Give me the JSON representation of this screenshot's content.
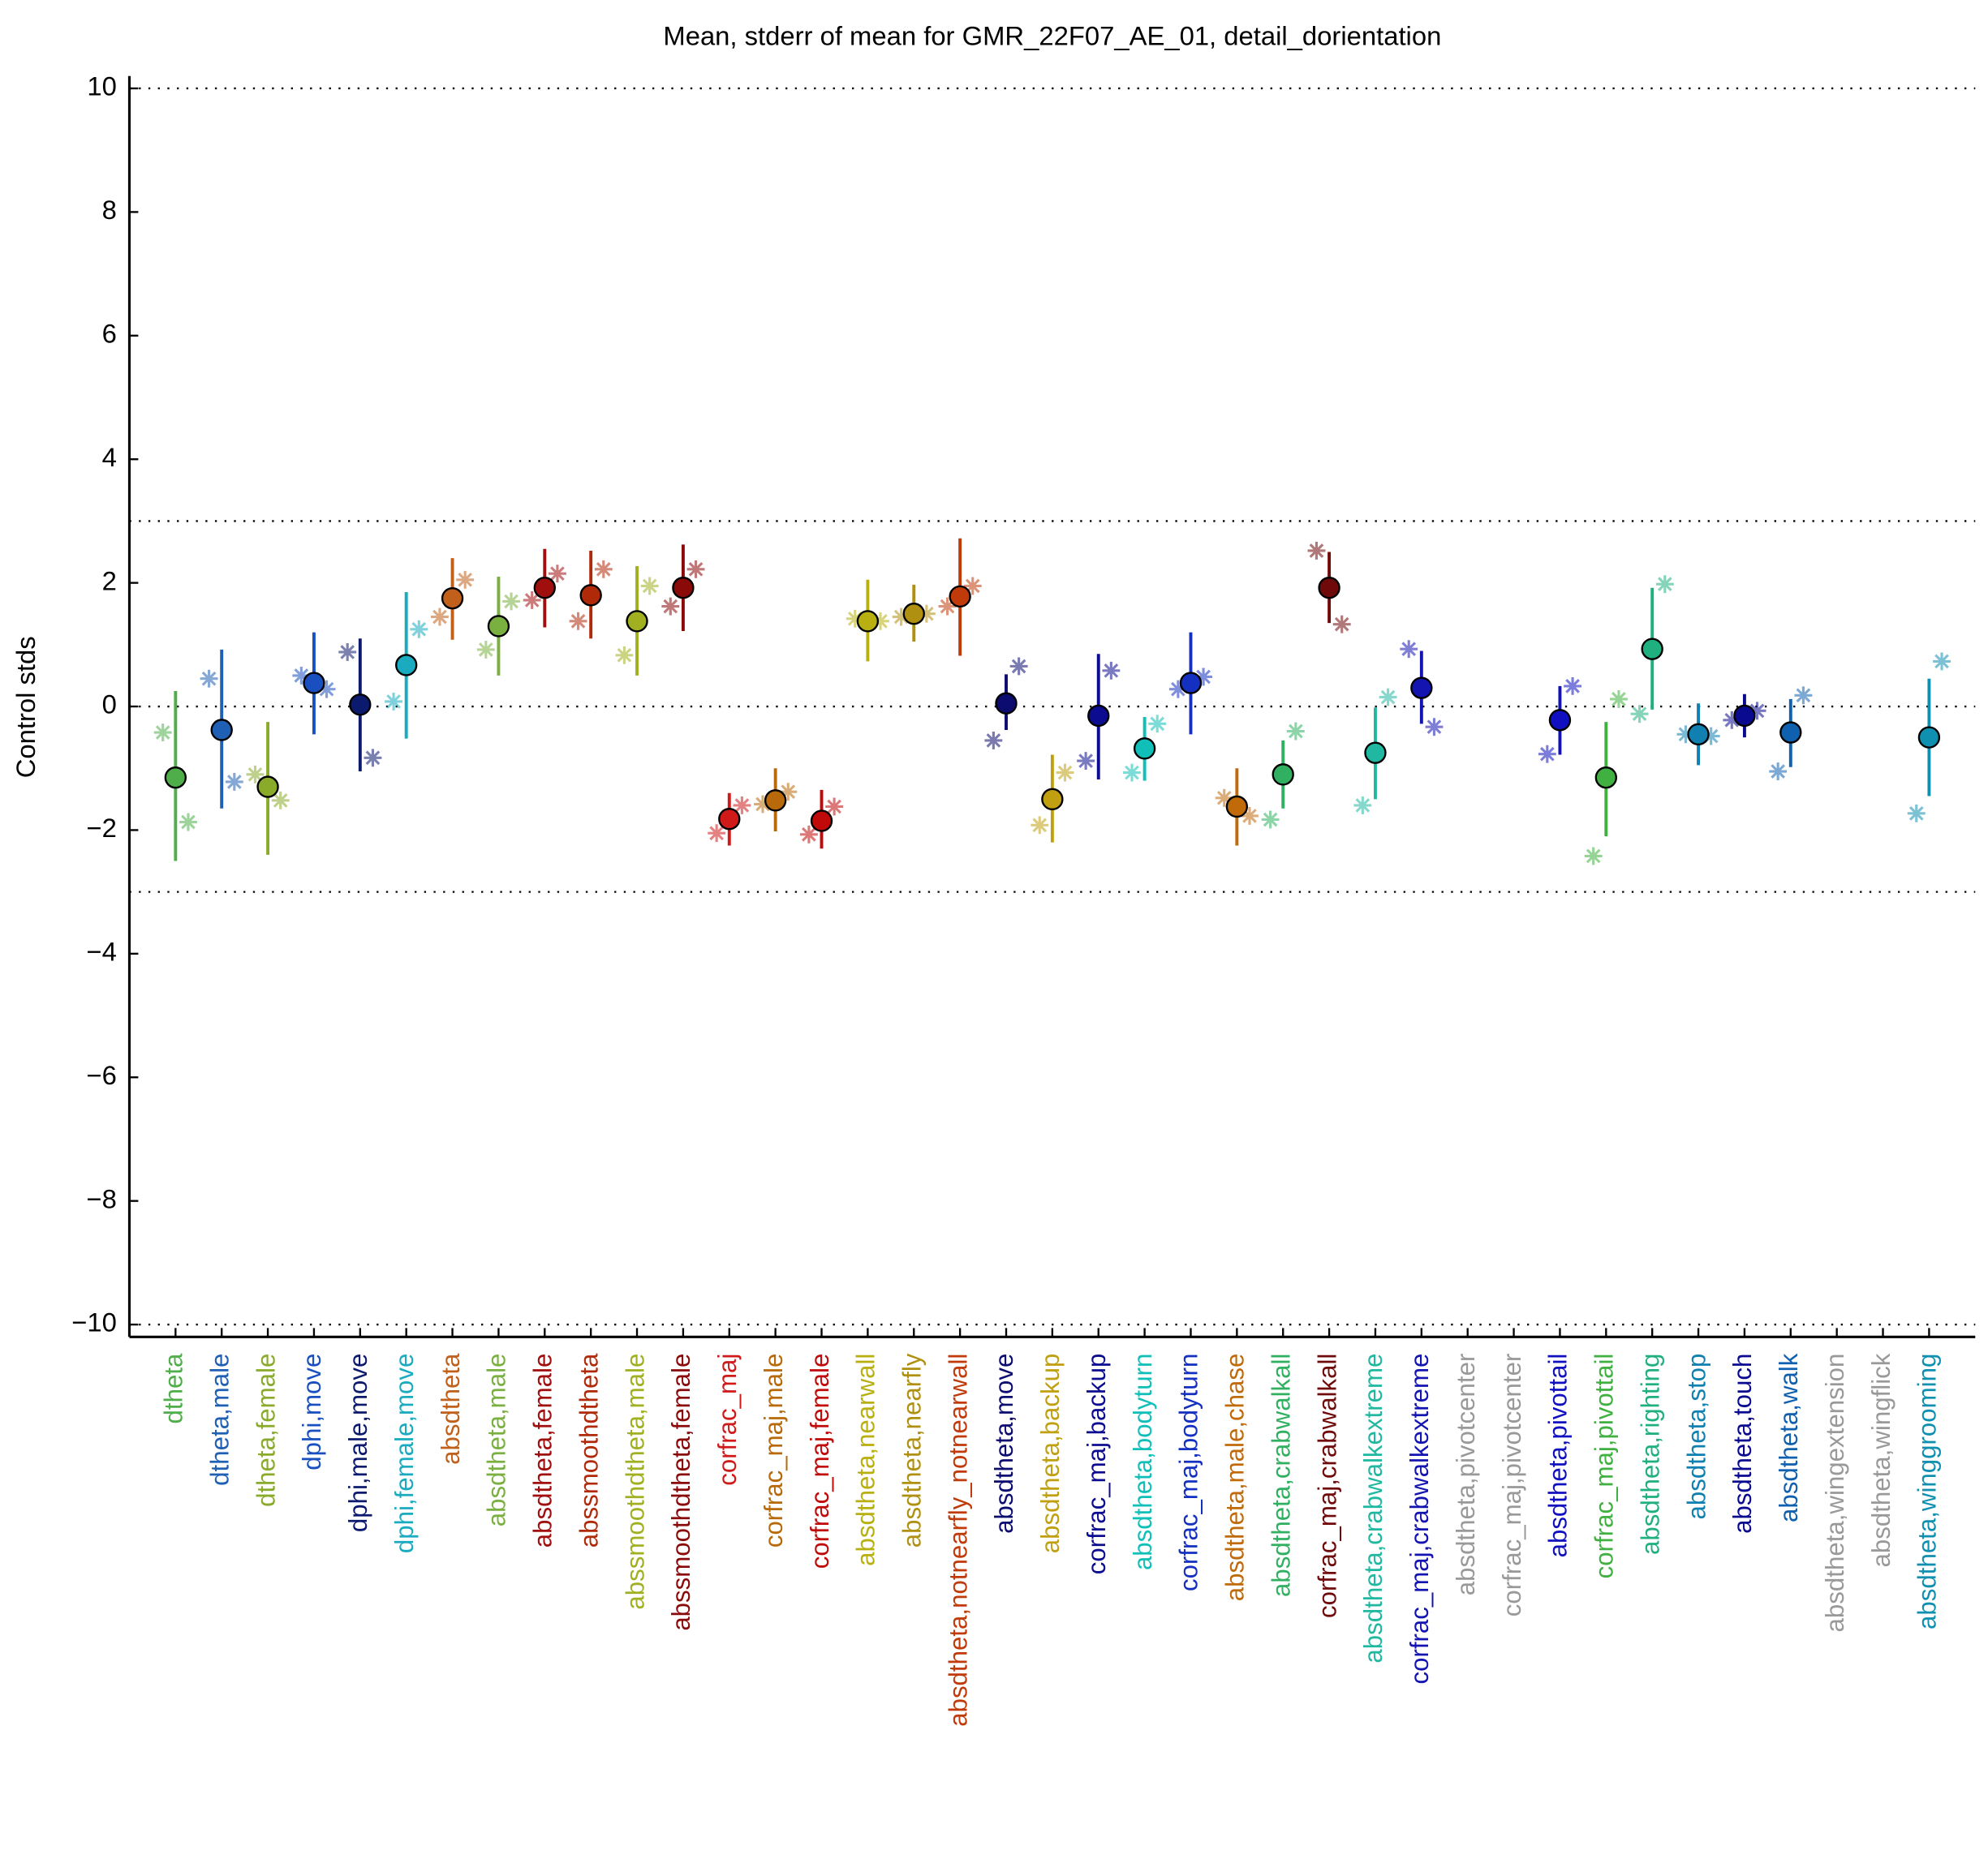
{
  "chart_data": {
    "type": "errorbar",
    "title": "Mean, stderr of mean for GMR_22F07_AE_01, detail_dorientation",
    "y_label": "Control stds",
    "categories": [
      "dtheta",
      "dtheta,male",
      "dtheta,female",
      "dphi,move",
      "dphi,male,move",
      "dphi,female,move",
      "absdtheta",
      "absdtheta,male",
      "absdtheta,female",
      "abssmoothdtheta",
      "abssmoothdtheta,male",
      "abssmoothdtheta,female",
      "corfrac_maj",
      "corfrac_maj,male",
      "corfrac_maj,female",
      "absdtheta,nearwall",
      "absdtheta,nearfly",
      "absdtheta,notnearfly_notnearwall",
      "absdtheta,move",
      "absdtheta,backup",
      "corfrac_maj,backup",
      "absdtheta,bodyturn",
      "corfrac_maj,bodyturn",
      "absdtheta,male,chase",
      "absdtheta,crabwalkall",
      "corfrac_maj,crabwalkall",
      "absdtheta,crabwalkextreme",
      "corfrac_maj,crabwalkextreme",
      "absdtheta,pivotcenter",
      "corfrac_maj,pivotcenter",
      "absdtheta,pivottail",
      "corfrac_maj,pivottail",
      "absdtheta,righting",
      "absdtheta,stop",
      "absdtheta,touch",
      "absdtheta,walk",
      "absdtheta,wingextension",
      "absdtheta,wingflick",
      "absdtheta,winggrooming"
    ],
    "colors": [
      "#4fae4a",
      "#1f5fb4",
      "#8aaa2a",
      "#1a4fc0",
      "#0c1a6e",
      "#1aabc0",
      "#c0601a",
      "#7ab040",
      "#a00e0e",
      "#b02a0a",
      "#a0b020",
      "#8a0a0a",
      "#d01a1a",
      "#b86a0a",
      "#c00a0a",
      "#b8b010",
      "#b09010",
      "#c03a0a",
      "#0c0c70",
      "#c0a010",
      "#0c0c90",
      "#10c0b8",
      "#1430c0",
      "#c06a0a",
      "#30b060",
      "#700a0a",
      "#20b8a0",
      "#1414b0",
      "#999999",
      "#999999",
      "#1010c0",
      "#40b040",
      "#20b080",
      "#1080b0",
      "#0a0a90",
      "#1060b0",
      "#999999",
      "#999999",
      "#1090b0"
    ],
    "values": [
      -1.15,
      -0.38,
      -1.3,
      0.38,
      0.03,
      0.67,
      1.75,
      1.3,
      1.92,
      1.8,
      1.38,
      1.92,
      -1.82,
      -1.52,
      -1.85,
      1.38,
      1.5,
      1.78,
      0.05,
      -1.5,
      -0.15,
      -0.68,
      0.38,
      -1.62,
      -1.1,
      1.92,
      -0.75,
      0.3,
      null,
      null,
      -0.22,
      -1.15,
      0.93,
      -0.45,
      -0.15,
      -0.42,
      null,
      null,
      -0.5
    ],
    "low": [
      -2.5,
      -1.65,
      -2.4,
      -0.45,
      -1.05,
      -0.52,
      1.08,
      0.5,
      1.28,
      1.1,
      0.5,
      1.22,
      -2.25,
      -2.02,
      -2.3,
      0.73,
      1.05,
      0.82,
      -0.38,
      -2.2,
      -1.18,
      -1.2,
      -0.45,
      -2.25,
      -1.65,
      1.35,
      -1.5,
      -0.28,
      null,
      null,
      -0.78,
      -2.1,
      -0.05,
      -0.95,
      -0.5,
      -0.98,
      null,
      null,
      -1.45
    ],
    "high": [
      0.25,
      0.92,
      -0.25,
      1.2,
      1.1,
      1.85,
      2.4,
      2.1,
      2.55,
      2.52,
      2.27,
      2.62,
      -1.4,
      -1.0,
      -1.35,
      2.05,
      1.97,
      2.72,
      0.52,
      -0.78,
      0.85,
      -0.17,
      1.2,
      -1.0,
      -0.55,
      2.5,
      -0.02,
      0.9,
      null,
      null,
      0.33,
      -0.25,
      1.92,
      0.05,
      0.2,
      0.12,
      null,
      null,
      0.45
    ],
    "star_left": [
      -0.42,
      0.45,
      -1.1,
      0.5,
      0.88,
      0.08,
      1.45,
      0.92,
      1.72,
      1.38,
      0.83,
      1.62,
      -2.05,
      -1.58,
      -2.07,
      1.42,
      1.45,
      1.62,
      -0.55,
      -1.92,
      -0.88,
      -1.07,
      0.28,
      -1.48,
      -1.83,
      2.52,
      -1.6,
      0.93,
      null,
      null,
      -0.77,
      -2.42,
      -0.12,
      -0.45,
      -0.22,
      -1.05,
      null,
      null,
      -1.73
    ],
    "star_right": [
      -1.87,
      -1.22,
      -1.52,
      0.28,
      -0.83,
      1.25,
      2.05,
      1.7,
      2.15,
      2.22,
      1.95,
      2.22,
      -1.6,
      -1.38,
      -1.62,
      1.38,
      1.5,
      1.95,
      0.65,
      -1.07,
      0.58,
      -0.28,
      0.48,
      -1.77,
      -0.4,
      1.33,
      0.15,
      -0.33,
      null,
      null,
      0.33,
      0.12,
      1.98,
      -0.48,
      -0.07,
      0.18,
      null,
      null,
      0.73
    ],
    "xlim": [
      0,
      40
    ],
    "ylim": [
      -10.2,
      10.2
    ],
    "yticks": [
      {
        "value": -10,
        "label": "−10"
      },
      {
        "value": -8,
        "label": "−8"
      },
      {
        "value": -6,
        "label": "−6"
      },
      {
        "value": -4,
        "label": "−4"
      },
      {
        "value": -2,
        "label": "−2"
      },
      0,
      2,
      4,
      6,
      8,
      10
    ],
    "reference_lines": [
      10,
      3,
      0,
      -3,
      -10
    ]
  }
}
